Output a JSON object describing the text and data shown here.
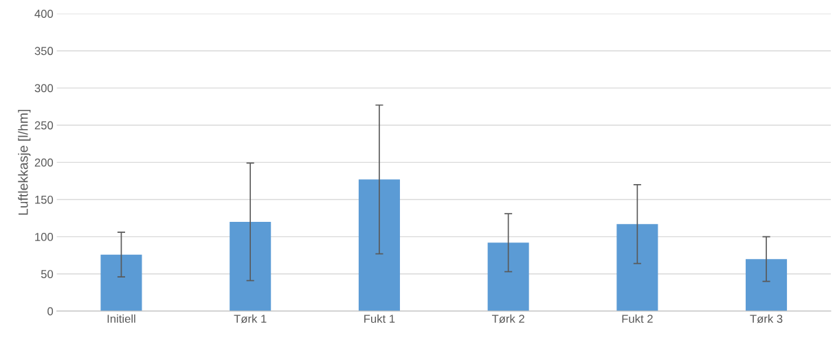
{
  "chart_data": {
    "type": "bar",
    "ylabel": "Luftlekkasje [l/hm]",
    "categories": [
      "Initiell",
      "Tørk 1",
      "Fukt 1",
      "Tørk 2",
      "Fukt 2",
      "Tørk 3"
    ],
    "values": [
      76,
      120,
      177,
      92,
      117,
      70
    ],
    "errors": [
      30,
      79,
      100,
      39,
      53,
      30
    ],
    "color": "#5b9bd5",
    "ylim": [
      0,
      400
    ],
    "yticks": [
      0,
      50,
      100,
      150,
      200,
      250,
      300,
      350,
      400
    ],
    "grid": "y"
  }
}
